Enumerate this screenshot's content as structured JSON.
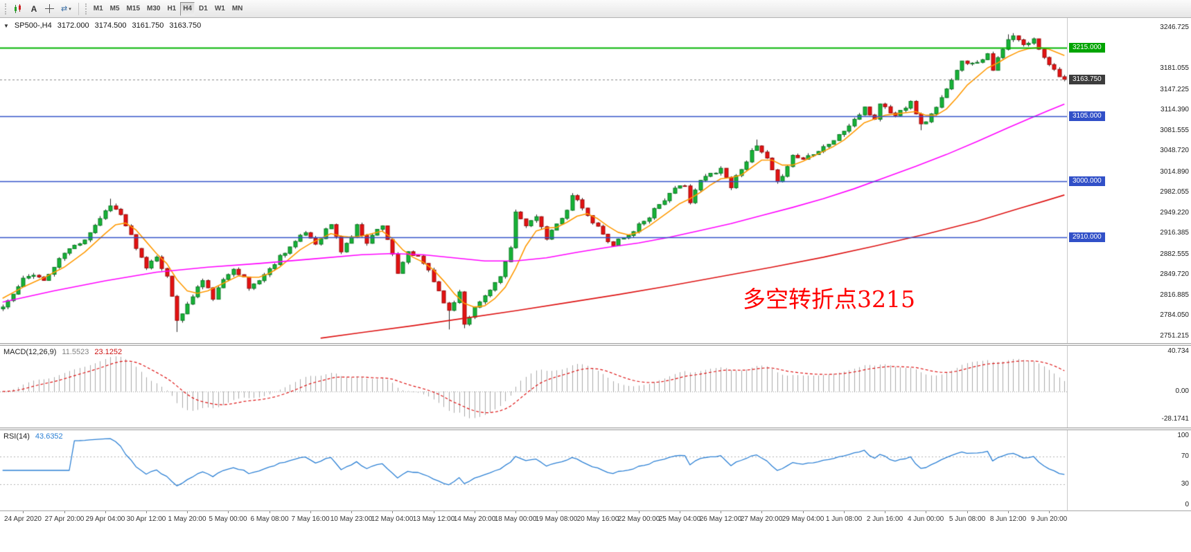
{
  "toolbar": {
    "tools": [
      {
        "name": "chart-window-icon"
      },
      {
        "name": "text-tool-button",
        "label": "A"
      },
      {
        "name": "crosshair-tool-button"
      },
      {
        "name": "cycles-dropdown-button"
      }
    ],
    "timeframes": [
      {
        "label": "M1",
        "active": false
      },
      {
        "label": "M5",
        "active": false
      },
      {
        "label": "M15",
        "active": false
      },
      {
        "label": "M30",
        "active": false
      },
      {
        "label": "H1",
        "active": false
      },
      {
        "label": "H4",
        "active": true
      },
      {
        "label": "D1",
        "active": false
      },
      {
        "label": "W1",
        "active": false
      },
      {
        "label": "MN",
        "active": false
      }
    ]
  },
  "chart_header": {
    "collapse_icon": "▼",
    "symbol": "SP500-,H4",
    "open": "3172.000",
    "high": "3174.500",
    "low": "3161.750",
    "close": "3163.750"
  },
  "annotation": {
    "text": "多空转折点3215",
    "color": "#ff0000"
  },
  "price_axis": {
    "ticks": [
      {
        "v": 3246.725,
        "label": "3246.725"
      },
      {
        "v": 3181.055,
        "label": "3181.055"
      },
      {
        "v": 3147.225,
        "label": "3147.225"
      },
      {
        "v": 3114.39,
        "label": "3114.390"
      },
      {
        "v": 3081.555,
        "label": "3081.555"
      },
      {
        "v": 3048.72,
        "label": "3048.720"
      },
      {
        "v": 3014.89,
        "label": "3014.890"
      },
      {
        "v": 2982.055,
        "label": "2982.055"
      },
      {
        "v": 2949.22,
        "label": "2949.220"
      },
      {
        "v": 2916.385,
        "label": "2916.385"
      },
      {
        "v": 2882.555,
        "label": "2882.555"
      },
      {
        "v": 2849.72,
        "label": "2849.720"
      },
      {
        "v": 2816.885,
        "label": "2816.885"
      },
      {
        "v": 2784.05,
        "label": "2784.050"
      },
      {
        "v": 2751.215,
        "label": "2751.215"
      }
    ],
    "badges": [
      {
        "v": 3215.0,
        "label": "3215.000",
        "color": "#00a400"
      },
      {
        "v": 3163.75,
        "label": "3163.750",
        "color": "#3c3c3c"
      },
      {
        "v": 3105.0,
        "label": "3105.000",
        "color": "#3150c8"
      },
      {
        "v": 3000.0,
        "label": "3000.000",
        "color": "#3150c8"
      },
      {
        "v": 2910.0,
        "label": "2910.000",
        "color": "#3150c8"
      }
    ]
  },
  "hlines": [
    {
      "v": 3215.0,
      "color": "#00b400",
      "width": 2
    },
    {
      "v": 3105.0,
      "color": "#3150c8",
      "width": 1.5
    },
    {
      "v": 3000.0,
      "color": "#3150c8",
      "width": 1.5
    },
    {
      "v": 2910.0,
      "color": "#3150c8",
      "width": 1.5
    }
  ],
  "current_price": {
    "v": 3163.75,
    "label": "3163.750"
  },
  "macd_panel": {
    "title": "MACD(12,26,9)",
    "value_main": "11.5523",
    "value_signal": "23.1252",
    "range": {
      "min": -28.1741,
      "max": 40.734
    },
    "axis": [
      {
        "v": 40.734,
        "label": "40.734"
      },
      {
        "v": 0,
        "label": "0.00"
      },
      {
        "v": -28.1741,
        "label": "-28.1741"
      }
    ],
    "params": {
      "fast": 12,
      "slow": 26,
      "signal": 9
    }
  },
  "rsi_panel": {
    "title": "RSI(14)",
    "value": "43.6352",
    "range": {
      "min": 0,
      "max": 100
    },
    "levels": [
      30,
      70
    ],
    "axis": [
      {
        "v": 100,
        "label": "100"
      },
      {
        "v": 70,
        "label": "70"
      },
      {
        "v": 30,
        "label": "30"
      },
      {
        "v": 0,
        "label": "0"
      }
    ],
    "params": {
      "period": 14
    }
  },
  "time_axis": {
    "labels": [
      "24 Apr 2020",
      "27 Apr 20:00",
      "29 Apr 04:00",
      "30 Apr 12:00",
      "1 May 20:00",
      "5 May 00:00",
      "6 May 08:00",
      "7 May 16:00",
      "10 May 23:00",
      "12 May 04:00",
      "13 May 12:00",
      "14 May 20:00",
      "18 May 00:00",
      "19 May 08:00",
      "20 May 16:00",
      "22 May 00:00",
      "25 May 04:00",
      "26 May 12:00",
      "27 May 20:00",
      "29 May 04:00",
      "1 Jun 08:00",
      "2 Jun 16:00",
      "4 Jun 00:00",
      "5 Jun 08:00",
      "8 Jun 12:00",
      "9 Jun 20:00"
    ]
  },
  "colors": {
    "up": "#17b337",
    "up_border": "#0a7a24",
    "down": "#e51212",
    "down_border": "#9c0b0b",
    "wick": "#222222",
    "ma_fast": "#ff9900",
    "ma_mid": "#ff00ff",
    "ma_slow": "#dd1111",
    "macd_hist": "#a8a8a8",
    "macd_signal": "#dd1111",
    "rsi_line": "#2a7fd4",
    "level_dotted": "#b0b0b0"
  },
  "chart_data": {
    "type": "candlestick",
    "symbol": "SP500-,H4",
    "bars": 208,
    "y_min": 2751.215,
    "y_max": 3246.725,
    "last_close": 3163.75,
    "seed": 11,
    "noise_amp": 3.5,
    "close_anchors": [
      [
        0,
        2798
      ],
      [
        2,
        2818
      ],
      [
        4,
        2842
      ],
      [
        6,
        2852
      ],
      [
        8,
        2840
      ],
      [
        10,
        2862
      ],
      [
        12,
        2885
      ],
      [
        14,
        2896
      ],
      [
        16,
        2908
      ],
      [
        18,
        2930
      ],
      [
        20,
        2952
      ],
      [
        21,
        2963
      ],
      [
        23,
        2946
      ],
      [
        25,
        2912
      ],
      [
        26,
        2890
      ],
      [
        28,
        2862
      ],
      [
        30,
        2880
      ],
      [
        32,
        2846
      ],
      [
        33,
        2812
      ],
      [
        34,
        2778
      ],
      [
        36,
        2801
      ],
      [
        38,
        2830
      ],
      [
        39,
        2840
      ],
      [
        41,
        2813
      ],
      [
        43,
        2840
      ],
      [
        45,
        2862
      ],
      [
        47,
        2844
      ],
      [
        48,
        2828
      ],
      [
        50,
        2842
      ],
      [
        52,
        2858
      ],
      [
        54,
        2880
      ],
      [
        56,
        2895
      ],
      [
        58,
        2910
      ],
      [
        59,
        2918
      ],
      [
        61,
        2900
      ],
      [
        63,
        2922
      ],
      [
        64,
        2931
      ],
      [
        66,
        2888
      ],
      [
        68,
        2912
      ],
      [
        69,
        2928
      ],
      [
        71,
        2903
      ],
      [
        73,
        2922
      ],
      [
        74,
        2931
      ],
      [
        76,
        2884
      ],
      [
        77,
        2849
      ],
      [
        79,
        2886
      ],
      [
        81,
        2877
      ],
      [
        83,
        2858
      ],
      [
        84,
        2840
      ],
      [
        86,
        2808
      ],
      [
        87,
        2790
      ],
      [
        89,
        2823
      ],
      [
        90,
        2773
      ],
      [
        92,
        2796
      ],
      [
        94,
        2816
      ],
      [
        95,
        2828
      ],
      [
        97,
        2846
      ],
      [
        99,
        2890
      ],
      [
        100,
        2950
      ],
      [
        102,
        2928
      ],
      [
        104,
        2946
      ],
      [
        106,
        2906
      ],
      [
        108,
        2930
      ],
      [
        110,
        2956
      ],
      [
        111,
        2976
      ],
      [
        113,
        2958
      ],
      [
        114,
        2942
      ],
      [
        116,
        2926
      ],
      [
        117,
        2914
      ],
      [
        119,
        2898
      ],
      [
        120,
        2906
      ],
      [
        122,
        2912
      ],
      [
        124,
        2930
      ],
      [
        126,
        2944
      ],
      [
        127,
        2956
      ],
      [
        129,
        2971
      ],
      [
        131,
        2986
      ],
      [
        133,
        2996
      ],
      [
        134,
        2966
      ],
      [
        136,
        3001
      ],
      [
        138,
        3012
      ],
      [
        140,
        3021
      ],
      [
        142,
        2992
      ],
      [
        144,
        3022
      ],
      [
        146,
        3046
      ],
      [
        147,
        3056
      ],
      [
        149,
        3035
      ],
      [
        151,
        2996
      ],
      [
        153,
        3026
      ],
      [
        154,
        3041
      ],
      [
        156,
        3036
      ],
      [
        158,
        3046
      ],
      [
        160,
        3056
      ],
      [
        162,
        3066
      ],
      [
        164,
        3081
      ],
      [
        166,
        3099
      ],
      [
        168,
        3116
      ],
      [
        170,
        3100
      ],
      [
        171,
        3126
      ],
      [
        173,
        3111
      ],
      [
        174,
        3105
      ],
      [
        176,
        3121
      ],
      [
        177,
        3131
      ],
      [
        179,
        3090
      ],
      [
        181,
        3106
      ],
      [
        182,
        3121
      ],
      [
        184,
        3146
      ],
      [
        186,
        3176
      ],
      [
        187,
        3196
      ],
      [
        189,
        3188
      ],
      [
        191,
        3198
      ],
      [
        192,
        3206
      ],
      [
        193,
        3181
      ],
      [
        195,
        3211
      ],
      [
        196,
        3226
      ],
      [
        197,
        3233
      ],
      [
        199,
        3218
      ],
      [
        201,
        3227
      ],
      [
        203,
        3201
      ],
      [
        205,
        3179
      ],
      [
        207,
        3163.75
      ]
    ],
    "wick_spikes": [
      {
        "bar": 21,
        "high": 2972
      },
      {
        "bar": 34,
        "low": 2758
      },
      {
        "bar": 87,
        "low": 2762
      },
      {
        "bar": 90,
        "low": 2764
      },
      {
        "bar": 111,
        "high": 2981
      },
      {
        "bar": 147,
        "high": 3067
      },
      {
        "bar": 179,
        "low": 3082
      },
      {
        "bar": 196,
        "high": 3236
      },
      {
        "bar": 197,
        "high": 3238
      }
    ],
    "ma_lines": [
      {
        "name": "fast-ma",
        "color": "#ff9900",
        "points": [
          [
            0,
            2812
          ],
          [
            4,
            2830
          ],
          [
            8,
            2845
          ],
          [
            12,
            2862
          ],
          [
            16,
            2886
          ],
          [
            20,
            2916
          ],
          [
            22,
            2930
          ],
          [
            24,
            2933
          ],
          [
            26,
            2922
          ],
          [
            28,
            2903
          ],
          [
            30,
            2884
          ],
          [
            32,
            2868
          ],
          [
            34,
            2842
          ],
          [
            36,
            2824
          ],
          [
            38,
            2820
          ],
          [
            40,
            2824
          ],
          [
            42,
            2832
          ],
          [
            44,
            2840
          ],
          [
            46,
            2848
          ],
          [
            48,
            2846
          ],
          [
            50,
            2846
          ],
          [
            52,
            2852
          ],
          [
            54,
            2862
          ],
          [
            56,
            2876
          ],
          [
            58,
            2890
          ],
          [
            60,
            2900
          ],
          [
            62,
            2908
          ],
          [
            64,
            2916
          ],
          [
            66,
            2912
          ],
          [
            68,
            2910
          ],
          [
            70,
            2912
          ],
          [
            72,
            2916
          ],
          [
            74,
            2920
          ],
          [
            76,
            2908
          ],
          [
            78,
            2890
          ],
          [
            80,
            2878
          ],
          [
            82,
            2870
          ],
          [
            84,
            2858
          ],
          [
            86,
            2840
          ],
          [
            88,
            2820
          ],
          [
            90,
            2804
          ],
          [
            92,
            2798
          ],
          [
            94,
            2800
          ],
          [
            96,
            2812
          ],
          [
            98,
            2830
          ],
          [
            100,
            2860
          ],
          [
            102,
            2896
          ],
          [
            104,
            2920
          ],
          [
            106,
            2925
          ],
          [
            108,
            2926
          ],
          [
            110,
            2934
          ],
          [
            112,
            2944
          ],
          [
            114,
            2948
          ],
          [
            116,
            2940
          ],
          [
            118,
            2928
          ],
          [
            120,
            2918
          ],
          [
            122,
            2914
          ],
          [
            124,
            2918
          ],
          [
            126,
            2928
          ],
          [
            128,
            2940
          ],
          [
            130,
            2952
          ],
          [
            132,
            2964
          ],
          [
            134,
            2972
          ],
          [
            136,
            2982
          ],
          [
            138,
            2994
          ],
          [
            140,
            3004
          ],
          [
            142,
            3006
          ],
          [
            144,
            3010
          ],
          [
            146,
            3022
          ],
          [
            148,
            3034
          ],
          [
            150,
            3034
          ],
          [
            152,
            3026
          ],
          [
            154,
            3026
          ],
          [
            156,
            3032
          ],
          [
            158,
            3040
          ],
          [
            160,
            3048
          ],
          [
            162,
            3056
          ],
          [
            164,
            3066
          ],
          [
            166,
            3080
          ],
          [
            168,
            3094
          ],
          [
            170,
            3100
          ],
          [
            172,
            3106
          ],
          [
            174,
            3108
          ],
          [
            176,
            3110
          ],
          [
            178,
            3112
          ],
          [
            180,
            3106
          ],
          [
            182,
            3106
          ],
          [
            184,
            3116
          ],
          [
            186,
            3134
          ],
          [
            188,
            3154
          ],
          [
            190,
            3168
          ],
          [
            192,
            3182
          ],
          [
            194,
            3190
          ],
          [
            196,
            3200
          ],
          [
            198,
            3208
          ],
          [
            200,
            3213
          ],
          [
            202,
            3215
          ],
          [
            204,
            3212
          ],
          [
            207,
            3202
          ]
        ]
      },
      {
        "name": "mid-ma",
        "color": "#ff00ff",
        "points": [
          [
            0,
            2806
          ],
          [
            10,
            2824
          ],
          [
            20,
            2840
          ],
          [
            30,
            2854
          ],
          [
            40,
            2862
          ],
          [
            50,
            2868
          ],
          [
            60,
            2875
          ],
          [
            70,
            2882
          ],
          [
            76,
            2884
          ],
          [
            82,
            2882
          ],
          [
            88,
            2877
          ],
          [
            94,
            2872
          ],
          [
            100,
            2872
          ],
          [
            106,
            2877
          ],
          [
            112,
            2886
          ],
          [
            118,
            2894
          ],
          [
            124,
            2901
          ],
          [
            130,
            2910
          ],
          [
            136,
            2921
          ],
          [
            142,
            2932
          ],
          [
            148,
            2945
          ],
          [
            154,
            2958
          ],
          [
            160,
            2972
          ],
          [
            166,
            2988
          ],
          [
            172,
            3006
          ],
          [
            178,
            3024
          ],
          [
            184,
            3043
          ],
          [
            190,
            3064
          ],
          [
            196,
            3086
          ],
          [
            200,
            3100
          ],
          [
            204,
            3114
          ],
          [
            207,
            3124
          ]
        ]
      },
      {
        "name": "slow-ma",
        "color": "#dd1111",
        "points": [
          [
            62,
            2748
          ],
          [
            70,
            2757
          ],
          [
            80,
            2768
          ],
          [
            90,
            2780
          ],
          [
            100,
            2792
          ],
          [
            110,
            2805
          ],
          [
            120,
            2818
          ],
          [
            130,
            2832
          ],
          [
            140,
            2847
          ],
          [
            150,
            2862
          ],
          [
            160,
            2878
          ],
          [
            170,
            2896
          ],
          [
            180,
            2915
          ],
          [
            190,
            2936
          ],
          [
            198,
            2956
          ],
          [
            203,
            2968
          ],
          [
            207,
            2978
          ]
        ]
      }
    ]
  }
}
